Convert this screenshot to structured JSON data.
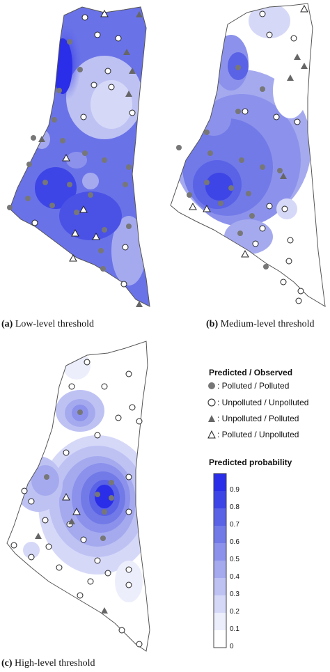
{
  "panels": [
    {
      "caption_letter": "(a)",
      "caption_text": " Low-level threshold"
    },
    {
      "caption_letter": "(b)",
      "caption_text": " Medium-level threshold"
    },
    {
      "caption_letter": "(c)",
      "caption_text": " High-level threshold"
    }
  ],
  "legend": {
    "title": "Predicted / Observed",
    "items": [
      {
        "symbol": "filled-circle",
        "label": ": Polluted / Polluted"
      },
      {
        "symbol": "open-circle",
        "label": ": Unpolluted / Unpolluted"
      },
      {
        "symbol": "filled-triangle",
        "label": ": Unpolluted / Polluted"
      },
      {
        "symbol": "open-triangle",
        "label": ": Polluted / Unpolluted"
      }
    ]
  },
  "colorbar": {
    "title": "Predicted probability",
    "ticks": [
      "0.9",
      "0.8",
      "0.7",
      "0.6",
      "0.5",
      "0.4",
      "0.3",
      "0.2",
      "0.1",
      "0"
    ],
    "colors": [
      "#2a2ee8",
      "#3d45e6",
      "#5a62e6",
      "#727ae8",
      "#8c92eb",
      "#a5aaef",
      "#bec2f3",
      "#d6d8f8",
      "#eceefc",
      "#ffffff"
    ]
  }
}
